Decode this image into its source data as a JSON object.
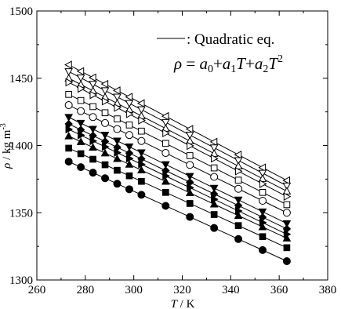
{
  "chart_data": {
    "type": "scatter",
    "title": "",
    "xlabel_main": "T",
    "xlabel_unit": " / K",
    "ylabel_main": "ρ",
    "ylabel_unit": " / kg m",
    "ylabel_exp": "-3",
    "xlim": [
      260,
      380
    ],
    "ylim": [
      1300,
      1500
    ],
    "x_ticks": [
      "260",
      "280",
      "300",
      "320",
      "340",
      "360",
      "380"
    ],
    "y_ticks": [
      "1300",
      "1350",
      "1400",
      "1450",
      "1500"
    ],
    "grid": false,
    "legend": {
      "position": "top-right",
      "line_label": ": Quadratic eq.",
      "equation": {
        "lhs": "ρ",
        "eq": " = ",
        "a0": "a",
        "a0_sub": "0",
        "plus1": "+",
        "a1": "a",
        "a1_sub": "1",
        "T1": "T",
        "plus2": "+",
        "a2": "a",
        "a2_sub": "2",
        "T2": "T",
        "T2_sup": "2"
      }
    },
    "x": [
      273.15,
      278.15,
      283.15,
      288.15,
      293.15,
      298.15,
      303.15,
      313.15,
      323.15,
      333.15,
      343.15,
      353.15,
      363.15
    ],
    "series": [
      {
        "marker": "triangle-left-open",
        "y0": 1460,
        "y1": 1374
      },
      {
        "marker": "triangle-down-open",
        "y0": 1455,
        "y1": 1370
      },
      {
        "marker": "triangle-up-open",
        "y0": 1450,
        "y1": 1366
      },
      {
        "marker": "triangle-right-open",
        "y0": 1447,
        "y1": 1362
      },
      {
        "marker": "square-open",
        "y0": 1438,
        "y1": 1356
      },
      {
        "marker": "circle-open",
        "y0": 1430,
        "y1": 1350
      },
      {
        "marker": "triangle-down-filled",
        "y0": 1421,
        "y1": 1342
      },
      {
        "marker": "diamond-filled",
        "y0": 1416,
        "y1": 1338
      },
      {
        "marker": "triangle-right-filled",
        "y0": 1412,
        "y1": 1334
      },
      {
        "marker": "triangle-up-filled",
        "y0": 1407,
        "y1": 1331
      },
      {
        "marker": "square-filled",
        "y0": 1398,
        "y1": 1324
      },
      {
        "marker": "circle-filled",
        "y0": 1388,
        "y1": 1314
      }
    ]
  }
}
